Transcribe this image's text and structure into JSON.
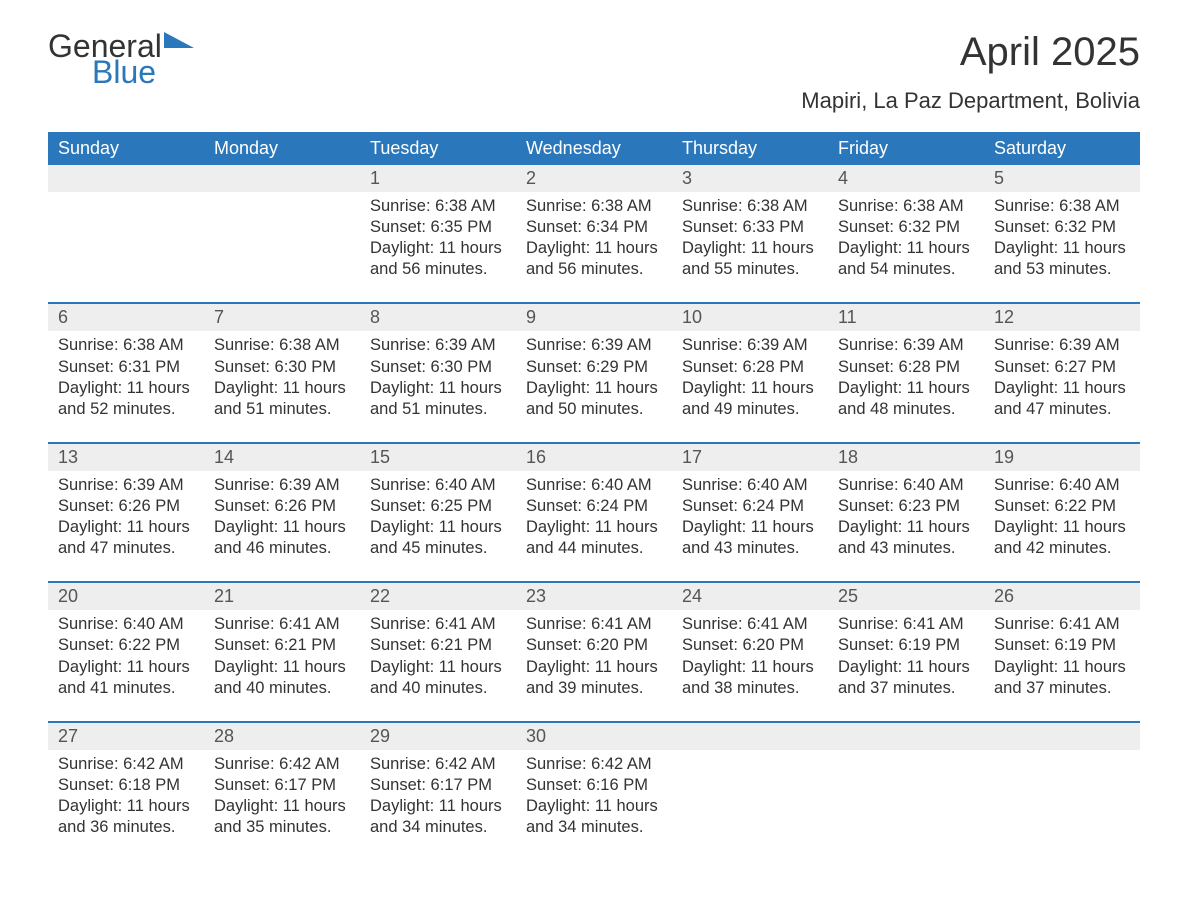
{
  "brand": {
    "word1": "General",
    "word2": "Blue",
    "accent_color": "#2a77bb"
  },
  "title": "April 2025",
  "location": "Mapiri, La Paz Department, Bolivia",
  "colors": {
    "header_bg": "#2a77bb",
    "header_text": "#ffffff",
    "daynum_bg": "#eeeeee",
    "week_border": "#2a77bb",
    "page_bg": "#ffffff",
    "body_text": "#333333"
  },
  "typography": {
    "title_fontsize": 40,
    "location_fontsize": 22,
    "header_fontsize": 18,
    "cell_fontsize": 16.5
  },
  "day_headers": [
    "Sunday",
    "Monday",
    "Tuesday",
    "Wednesday",
    "Thursday",
    "Friday",
    "Saturday"
  ],
  "weeks": [
    {
      "nums": [
        "",
        "",
        "1",
        "2",
        "3",
        "4",
        "5"
      ],
      "details": [
        {},
        {},
        {
          "sunrise": "Sunrise: 6:38 AM",
          "sunset": "Sunset: 6:35 PM",
          "daylight": "Daylight: 11 hours and 56 minutes."
        },
        {
          "sunrise": "Sunrise: 6:38 AM",
          "sunset": "Sunset: 6:34 PM",
          "daylight": "Daylight: 11 hours and 56 minutes."
        },
        {
          "sunrise": "Sunrise: 6:38 AM",
          "sunset": "Sunset: 6:33 PM",
          "daylight": "Daylight: 11 hours and 55 minutes."
        },
        {
          "sunrise": "Sunrise: 6:38 AM",
          "sunset": "Sunset: 6:32 PM",
          "daylight": "Daylight: 11 hours and 54 minutes."
        },
        {
          "sunrise": "Sunrise: 6:38 AM",
          "sunset": "Sunset: 6:32 PM",
          "daylight": "Daylight: 11 hours and 53 minutes."
        }
      ]
    },
    {
      "nums": [
        "6",
        "7",
        "8",
        "9",
        "10",
        "11",
        "12"
      ],
      "details": [
        {
          "sunrise": "Sunrise: 6:38 AM",
          "sunset": "Sunset: 6:31 PM",
          "daylight": "Daylight: 11 hours and 52 minutes."
        },
        {
          "sunrise": "Sunrise: 6:38 AM",
          "sunset": "Sunset: 6:30 PM",
          "daylight": "Daylight: 11 hours and 51 minutes."
        },
        {
          "sunrise": "Sunrise: 6:39 AM",
          "sunset": "Sunset: 6:30 PM",
          "daylight": "Daylight: 11 hours and 51 minutes."
        },
        {
          "sunrise": "Sunrise: 6:39 AM",
          "sunset": "Sunset: 6:29 PM",
          "daylight": "Daylight: 11 hours and 50 minutes."
        },
        {
          "sunrise": "Sunrise: 6:39 AM",
          "sunset": "Sunset: 6:28 PM",
          "daylight": "Daylight: 11 hours and 49 minutes."
        },
        {
          "sunrise": "Sunrise: 6:39 AM",
          "sunset": "Sunset: 6:28 PM",
          "daylight": "Daylight: 11 hours and 48 minutes."
        },
        {
          "sunrise": "Sunrise: 6:39 AM",
          "sunset": "Sunset: 6:27 PM",
          "daylight": "Daylight: 11 hours and 47 minutes."
        }
      ]
    },
    {
      "nums": [
        "13",
        "14",
        "15",
        "16",
        "17",
        "18",
        "19"
      ],
      "details": [
        {
          "sunrise": "Sunrise: 6:39 AM",
          "sunset": "Sunset: 6:26 PM",
          "daylight": "Daylight: 11 hours and 47 minutes."
        },
        {
          "sunrise": "Sunrise: 6:39 AM",
          "sunset": "Sunset: 6:26 PM",
          "daylight": "Daylight: 11 hours and 46 minutes."
        },
        {
          "sunrise": "Sunrise: 6:40 AM",
          "sunset": "Sunset: 6:25 PM",
          "daylight": "Daylight: 11 hours and 45 minutes."
        },
        {
          "sunrise": "Sunrise: 6:40 AM",
          "sunset": "Sunset: 6:24 PM",
          "daylight": "Daylight: 11 hours and 44 minutes."
        },
        {
          "sunrise": "Sunrise: 6:40 AM",
          "sunset": "Sunset: 6:24 PM",
          "daylight": "Daylight: 11 hours and 43 minutes."
        },
        {
          "sunrise": "Sunrise: 6:40 AM",
          "sunset": "Sunset: 6:23 PM",
          "daylight": "Daylight: 11 hours and 43 minutes."
        },
        {
          "sunrise": "Sunrise: 6:40 AM",
          "sunset": "Sunset: 6:22 PM",
          "daylight": "Daylight: 11 hours and 42 minutes."
        }
      ]
    },
    {
      "nums": [
        "20",
        "21",
        "22",
        "23",
        "24",
        "25",
        "26"
      ],
      "details": [
        {
          "sunrise": "Sunrise: 6:40 AM",
          "sunset": "Sunset: 6:22 PM",
          "daylight": "Daylight: 11 hours and 41 minutes."
        },
        {
          "sunrise": "Sunrise: 6:41 AM",
          "sunset": "Sunset: 6:21 PM",
          "daylight": "Daylight: 11 hours and 40 minutes."
        },
        {
          "sunrise": "Sunrise: 6:41 AM",
          "sunset": "Sunset: 6:21 PM",
          "daylight": "Daylight: 11 hours and 40 minutes."
        },
        {
          "sunrise": "Sunrise: 6:41 AM",
          "sunset": "Sunset: 6:20 PM",
          "daylight": "Daylight: 11 hours and 39 minutes."
        },
        {
          "sunrise": "Sunrise: 6:41 AM",
          "sunset": "Sunset: 6:20 PM",
          "daylight": "Daylight: 11 hours and 38 minutes."
        },
        {
          "sunrise": "Sunrise: 6:41 AM",
          "sunset": "Sunset: 6:19 PM",
          "daylight": "Daylight: 11 hours and 37 minutes."
        },
        {
          "sunrise": "Sunrise: 6:41 AM",
          "sunset": "Sunset: 6:19 PM",
          "daylight": "Daylight: 11 hours and 37 minutes."
        }
      ]
    },
    {
      "nums": [
        "27",
        "28",
        "29",
        "30",
        "",
        "",
        ""
      ],
      "details": [
        {
          "sunrise": "Sunrise: 6:42 AM",
          "sunset": "Sunset: 6:18 PM",
          "daylight": "Daylight: 11 hours and 36 minutes."
        },
        {
          "sunrise": "Sunrise: 6:42 AM",
          "sunset": "Sunset: 6:17 PM",
          "daylight": "Daylight: 11 hours and 35 minutes."
        },
        {
          "sunrise": "Sunrise: 6:42 AM",
          "sunset": "Sunset: 6:17 PM",
          "daylight": "Daylight: 11 hours and 34 minutes."
        },
        {
          "sunrise": "Sunrise: 6:42 AM",
          "sunset": "Sunset: 6:16 PM",
          "daylight": "Daylight: 11 hours and 34 minutes."
        },
        {},
        {},
        {}
      ]
    }
  ]
}
